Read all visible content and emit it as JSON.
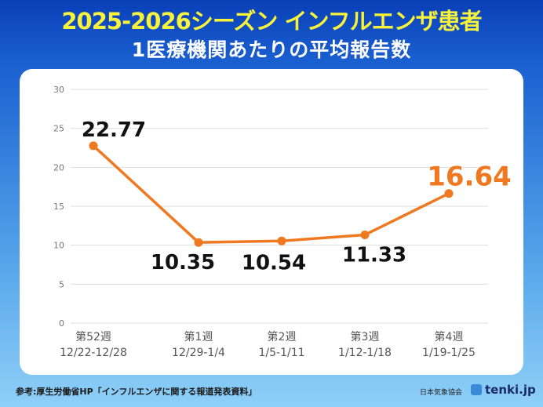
{
  "title": "2025-2026シーズン インフルエンザ患者",
  "subtitle": "1医療機関あたりの平均報告数",
  "source": "参考:厚生労働省HP「インフルエンザに関する報道発表資料」",
  "organization": "日本気象協会",
  "brand": "tenki.jp",
  "chart_data": {
    "type": "line",
    "categories": [
      [
        "第52週",
        "12/22-12/28"
      ],
      [
        "第1週",
        "12/29-1/4"
      ],
      [
        "第2週",
        "1/5-1/11"
      ],
      [
        "第3週",
        "1/12-1/18"
      ],
      [
        "第4週",
        "1/19-1/25"
      ]
    ],
    "values": [
      22.77,
      10.35,
      10.54,
      11.33,
      16.64
    ],
    "data_labels": [
      "22.77",
      "10.35",
      "10.54",
      "11.33",
      "16.64"
    ],
    "ylim": [
      0,
      30
    ],
    "yticks": [
      0,
      5,
      10,
      15,
      20,
      25,
      30
    ],
    "grid": true,
    "line_color": "#f07820",
    "highlight_color": "#f07820",
    "label_color": "#111111"
  }
}
